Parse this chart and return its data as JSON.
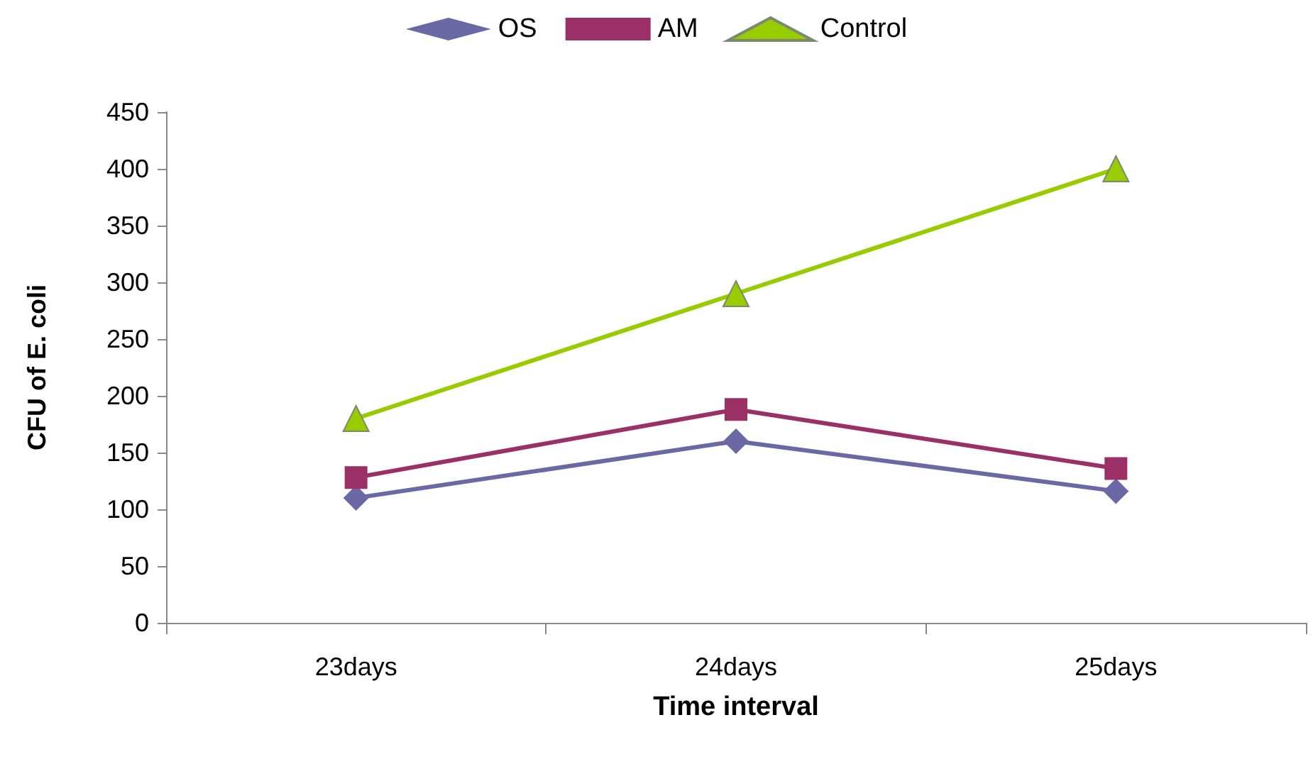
{
  "chart_data": {
    "type": "line",
    "xlabel": "Time interval",
    "ylabel": "CFU of E. coli",
    "categories": [
      "23days",
      "24days",
      "25days"
    ],
    "series": [
      {
        "name": "OS",
        "color": "#6b68a6",
        "marker": "diamond",
        "values": [
          110,
          160,
          116
        ]
      },
      {
        "name": "AM",
        "color": "#9b3066",
        "marker": "square",
        "values": [
          128,
          188,
          136
        ]
      },
      {
        "name": "Control",
        "color": "#99cc00",
        "marker": "triangle",
        "values": [
          180,
          290,
          400
        ]
      }
    ],
    "ylim": [
      0,
      450
    ],
    "yticks": [
      0,
      50,
      100,
      150,
      200,
      250,
      300,
      350,
      400,
      450
    ],
    "grid": false,
    "legend": "top",
    "line_style": "solid"
  }
}
